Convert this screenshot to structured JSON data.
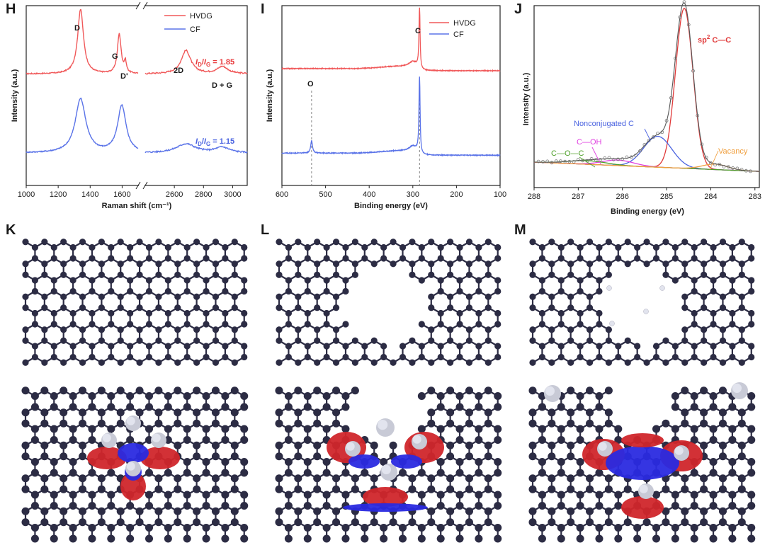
{
  "panels": {
    "H": "H",
    "I": "I",
    "J": "J",
    "K": "K",
    "L": "L",
    "M": "M"
  },
  "chart_data": [
    {
      "id": "H",
      "type": "line",
      "xlabel": "Raman shift (cm⁻¹)",
      "ylabel": "Intensity (a.u.)",
      "x_ticks_left": [
        1000,
        1200,
        1400,
        1600
      ],
      "x_ticks_right": [
        2600,
        2800,
        3000
      ],
      "xlim_left": [
        1000,
        1700
      ],
      "xlim_right": [
        2400,
        3100
      ],
      "broken_axis": true,
      "legend": {
        "position": "top-right",
        "entries": [
          "HVDG",
          "CF"
        ]
      },
      "colors": {
        "HVDG": "#f0595a",
        "CF": "#5a73e8"
      },
      "series": [
        {
          "name": "HVDG",
          "offset": 0.62,
          "peaks": [
            {
              "x": 1340,
              "h": 0.36,
              "w": 22
            },
            {
              "x": 1582,
              "h": 0.22,
              "w": 14
            },
            {
              "x": 1620,
              "h": 0.06,
              "w": 8
            },
            {
              "x": 2680,
              "h": 0.13,
              "w": 40
            },
            {
              "x": 2930,
              "h": 0.04,
              "w": 45
            }
          ]
        },
        {
          "name": "CF",
          "offset": 0.18,
          "peaks": [
            {
              "x": 1340,
              "h": 0.3,
              "w": 40
            },
            {
              "x": 1598,
              "h": 0.26,
              "w": 32
            },
            {
              "x": 2680,
              "h": 0.05,
              "w": 80
            },
            {
              "x": 2930,
              "h": 0.03,
              "w": 60
            }
          ]
        }
      ],
      "annotations": {
        "D": "D",
        "G": "G",
        "Dprime": "D'",
        "twoD": "2D",
        "DG": "D + G",
        "ratio_hvdg_I": "I",
        "ratio_hvdg_sub_D": "D",
        "ratio_hvdg_slash": "/",
        "ratio_hvdg_sub_G": "G",
        "ratio_hvdg_value": " = 1.85",
        "ratio_cf_value": " = 1.15"
      }
    },
    {
      "id": "I",
      "type": "line",
      "xlabel": "Binding energy (eV)",
      "ylabel": "Intensity (a.u.)",
      "x_ticks": [
        600,
        500,
        400,
        300,
        200,
        100
      ],
      "xlim": [
        600,
        100
      ],
      "legend": {
        "position": "top-right",
        "entries": [
          "HVDG",
          "CF"
        ]
      },
      "colors": {
        "HVDG": "#f0595a",
        "CF": "#5a73e8"
      },
      "series": [
        {
          "name": "HVDG",
          "offset": 0.65,
          "peaks": [
            {
              "x": 284.6,
              "h": 0.33,
              "w": 1.5
            },
            {
              "x": 300,
              "h": 0.03,
              "w": 10
            }
          ]
        },
        {
          "name": "CF",
          "offset": 0.18,
          "peaks": [
            {
              "x": 284.6,
              "h": 0.42,
              "w": 1.5
            },
            {
              "x": 532,
              "h": 0.07,
              "w": 2.5
            },
            {
              "x": 300,
              "h": 0.03,
              "w": 10
            }
          ]
        }
      ],
      "annotations": {
        "C": "C",
        "O": "O"
      },
      "reference_lines_x": [
        532,
        284.6
      ]
    },
    {
      "id": "J",
      "type": "line",
      "xlabel": "Binding energy (eV)",
      "ylabel": "Intensity (a.u.)",
      "x_ticks": [
        288,
        287,
        286,
        285,
        284,
        283
      ],
      "xlim": [
        288,
        282.9
      ],
      "colors": {
        "raw": "#7a7a7a",
        "sp2": "#e03a3a",
        "nonconj": "#4a63e0",
        "coh": "#e040e0",
        "coc": "#4fa02a",
        "vacancy": "#f0a040"
      },
      "series": [
        {
          "name": "sp2 C—C",
          "center": 284.6,
          "h": 0.88,
          "w": 0.28
        },
        {
          "name": "Nonconjugated C",
          "center": 285.2,
          "h": 0.17,
          "w": 0.45
        },
        {
          "name": "C—OH",
          "center": 286.1,
          "h": 0.03,
          "w": 0.5
        },
        {
          "name": "C—O—C",
          "center": 286.8,
          "h": 0.02,
          "w": 0.6
        },
        {
          "name": "Vacancy",
          "center": 283.9,
          "h": 0.03,
          "w": 0.4
        }
      ],
      "annotations": {
        "sp2_a": "sp",
        "sp2_sup": "2",
        "sp2_b": " C—C",
        "nonconj": "Nonconjugated C",
        "coh": "C—OH",
        "coc": "C—O—C",
        "vacancy": "Vacancy"
      }
    }
  ],
  "structures": {
    "colors": {
      "atom": "#2c2c44",
      "bond": "#2c2c44",
      "hydrogen": "#e2e4ee",
      "cdd_pos": "#d0262b",
      "cdd_neg": "#2a2ae0"
    },
    "K": {
      "vacancy": "none",
      "adsorbed_h": 4
    },
    "L": {
      "vacancy": "large",
      "adsorbed_h": 3
    },
    "M": {
      "vacancy": "large-h-terminated",
      "adsorbed_h": 3
    }
  }
}
